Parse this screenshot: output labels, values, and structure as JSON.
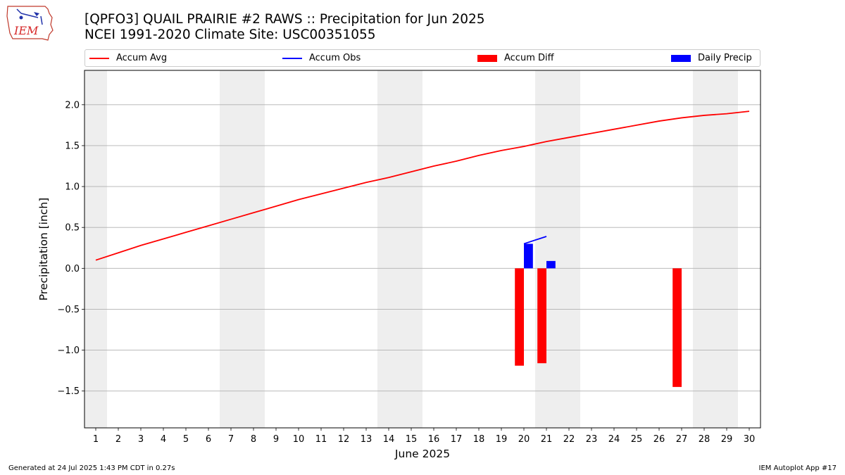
{
  "logo": {
    "text": "IEM",
    "name": "iem-logo"
  },
  "title": {
    "line1": "[QPFO3] QUAIL PRAIRIE #2 RAWS :: Precipitation for Jun 2025",
    "line2": "NCEI 1991-2020 Climate Site: USC00351055"
  },
  "legend": {
    "items": [
      {
        "label": "Accum Avg",
        "kind": "line",
        "color": "#ff0000"
      },
      {
        "label": "Accum Obs",
        "kind": "line",
        "color": "#0000ff"
      },
      {
        "label": "Accum Diff",
        "kind": "patch",
        "color": "#ff0000"
      },
      {
        "label": "Daily Precip",
        "kind": "patch",
        "color": "#0000ff"
      }
    ]
  },
  "footer": {
    "left": "Generated at 24 Jul 2025 1:43 PM CDT in 0.27s",
    "right": "IEM Autoplot App #17"
  },
  "chart_data": {
    "type": "bar",
    "xlabel": "June 2025",
    "ylabel": "Precipitation [inch]",
    "xlim": [
      0.5,
      30.5
    ],
    "ylim": [
      -1.95,
      2.42
    ],
    "x": [
      1,
      2,
      3,
      4,
      5,
      6,
      7,
      8,
      9,
      10,
      11,
      12,
      13,
      14,
      15,
      16,
      17,
      18,
      19,
      20,
      21,
      22,
      23,
      24,
      25,
      26,
      27,
      28,
      29,
      30
    ],
    "x_tick_labels": [
      "1",
      "2",
      "3",
      "4",
      "5",
      "6",
      "7",
      "8",
      "9",
      "10",
      "11",
      "12",
      "13",
      "14",
      "15",
      "16",
      "17",
      "18",
      "19",
      "20",
      "21",
      "22",
      "23",
      "24",
      "25",
      "26",
      "27",
      "28",
      "29",
      "30"
    ],
    "y_ticks": [
      -1.5,
      -1.0,
      -0.5,
      0.0,
      0.5,
      1.0,
      1.5,
      2.0
    ],
    "y_tick_labels": [
      "−1.5",
      "−1.0",
      "−0.5",
      "0.0",
      "0.5",
      "1.0",
      "1.5",
      "2.0"
    ],
    "weekend_shading": [
      [
        0.5,
        1.5
      ],
      [
        6.5,
        8.5
      ],
      [
        13.5,
        15.5
      ],
      [
        20.5,
        22.5
      ],
      [
        27.5,
        29.5
      ]
    ],
    "grid": "horizontal",
    "legend_position": "top",
    "series": [
      {
        "name": "Accum Avg",
        "kind": "line",
        "color": "#ff0000",
        "x": [
          1,
          2,
          3,
          4,
          5,
          6,
          7,
          8,
          9,
          10,
          11,
          12,
          13,
          14,
          15,
          16,
          17,
          18,
          19,
          20,
          21,
          22,
          23,
          24,
          25,
          26,
          27,
          28,
          29,
          30
        ],
        "values": [
          0.1,
          0.19,
          0.28,
          0.36,
          0.44,
          0.52,
          0.6,
          0.68,
          0.76,
          0.84,
          0.91,
          0.98,
          1.05,
          1.11,
          1.18,
          1.25,
          1.31,
          1.38,
          1.44,
          1.49,
          1.55,
          1.6,
          1.65,
          1.7,
          1.75,
          1.8,
          1.84,
          1.87,
          1.89,
          1.92
        ]
      },
      {
        "name": "Accum Obs",
        "kind": "line",
        "color": "#0000ff",
        "x": [
          20,
          21
        ],
        "values": [
          0.3,
          0.39
        ]
      },
      {
        "name": "Accum Diff",
        "kind": "bar",
        "color": "#ff0000",
        "x": [
          20,
          21,
          27
        ],
        "values": [
          -1.19,
          -1.16,
          -1.45
        ]
      },
      {
        "name": "Daily Precip",
        "kind": "bar",
        "color": "#0000ff",
        "x": [
          20,
          21
        ],
        "values": [
          0.3,
          0.09
        ]
      }
    ]
  }
}
